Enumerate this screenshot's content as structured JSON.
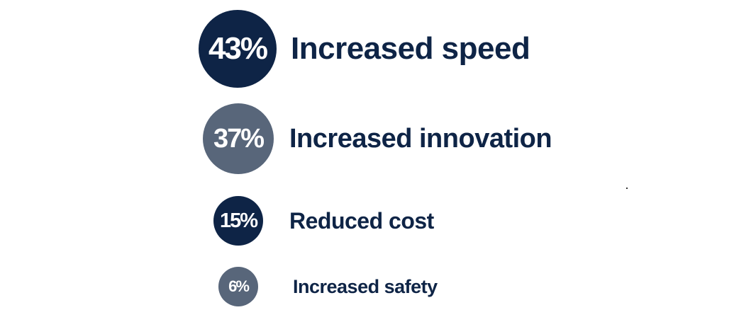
{
  "colors": {
    "dark_navy": "#0e2446",
    "slate_gray": "#58667a",
    "label_text": "#0e2446",
    "circle_text": "#ffffff"
  },
  "chart_data": {
    "type": "bubble-list",
    "items": [
      {
        "value": 43,
        "value_label": "43%",
        "label": "Increased speed",
        "color": "#0e2446"
      },
      {
        "value": 37,
        "value_label": "37%",
        "label": "Increased innovation",
        "color": "#58667a"
      },
      {
        "value": 15,
        "value_label": "15%",
        "label": "Reduced cost",
        "color": "#0e2446"
      },
      {
        "value": 6,
        "value_label": "6%",
        "label": "Increased safety",
        "color": "#58667a"
      }
    ]
  }
}
